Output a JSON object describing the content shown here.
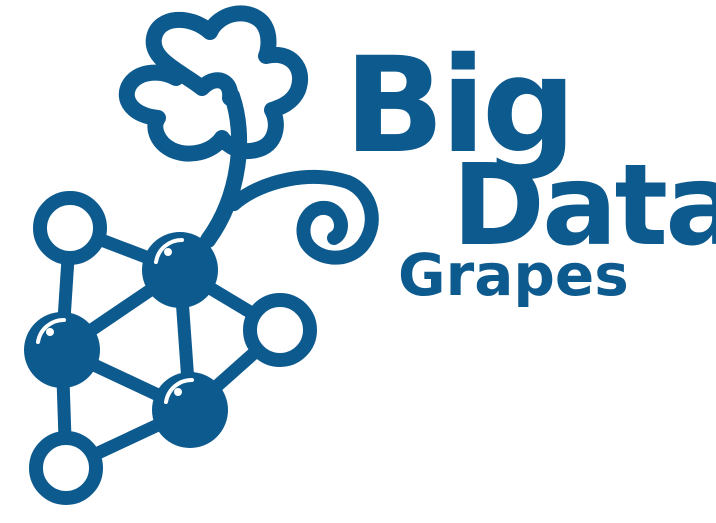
{
  "logo": {
    "word_1": "Big",
    "word_2": "Data",
    "word_3": "Grapes",
    "brand_color": "#0d5a8e",
    "highlight_color": "#ffffff",
    "icons": [
      "grape-leaf-icon",
      "vine-tendril-icon",
      "molecule-grape-cluster-icon"
    ]
  }
}
